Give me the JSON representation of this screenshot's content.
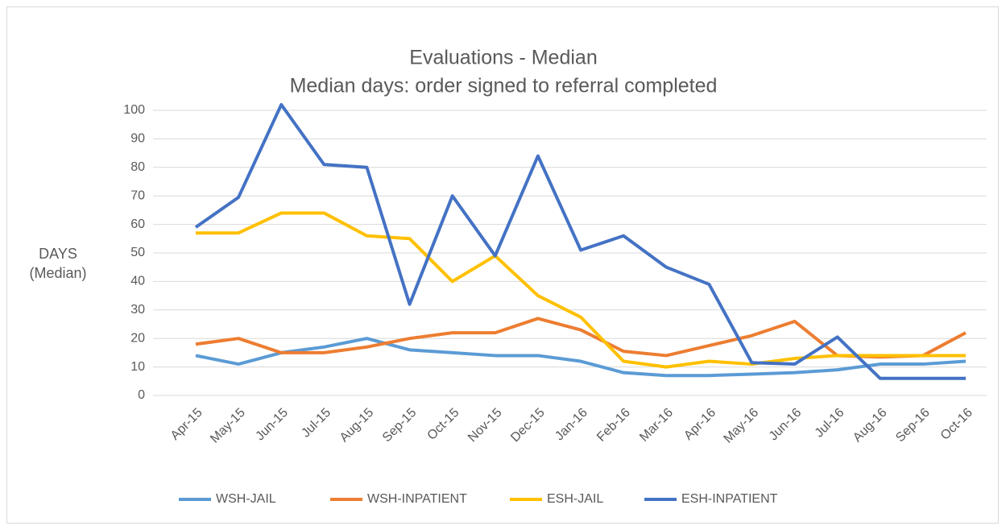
{
  "chart_data": {
    "type": "line",
    "title": "Evaluations - Median",
    "subtitle": "Median days: order signed to referral completed",
    "y_label": [
      "DAYS",
      "(Median)"
    ],
    "categories": [
      "Apr-15",
      "May-15",
      "Jun-15",
      "Jul-15",
      "Aug-15",
      "Sep-15",
      "Oct-15",
      "Nov-15",
      "Dec-15",
      "Jan-16",
      "Feb-16",
      "Mar-16",
      "Apr-16",
      "May-16",
      "Jun-16",
      "Jul-16",
      "Aug-16",
      "Sep-16",
      "Oct-16"
    ],
    "series": [
      {
        "name": "WSH-JAIL",
        "color": "#5b9bd5",
        "values": [
          14,
          11,
          15,
          17,
          20,
          16,
          15,
          14,
          14,
          12,
          8,
          7,
          7,
          7.5,
          8,
          9,
          11,
          11,
          12
        ]
      },
      {
        "name": "WSH-INPATIENT",
        "color": "#ed7d31",
        "values": [
          18,
          20,
          15,
          15,
          17,
          20,
          22,
          22,
          27,
          23,
          15.5,
          14,
          17.5,
          21,
          26,
          14,
          13.5,
          14,
          22
        ]
      },
      {
        "name": "ESH-JAIL",
        "color": "#ffc000",
        "values": [
          57,
          57,
          64,
          64,
          56,
          55,
          40,
          49,
          35,
          27.5,
          12,
          10,
          12,
          11,
          13,
          14,
          14,
          14,
          14
        ]
      },
      {
        "name": "ESH-INPATIENT",
        "color": "#4472c4",
        "values": [
          59,
          69.5,
          102,
          81,
          80,
          32,
          70,
          49,
          84,
          51,
          56,
          45,
          39,
          11.5,
          11,
          20.5,
          6,
          6,
          6
        ]
      }
    ],
    "ylim": [
      0,
      100
    ],
    "yticks": [
      0,
      10,
      20,
      30,
      40,
      50,
      60,
      70,
      80,
      90,
      100
    ],
    "grid": true,
    "legend": "bottom"
  }
}
